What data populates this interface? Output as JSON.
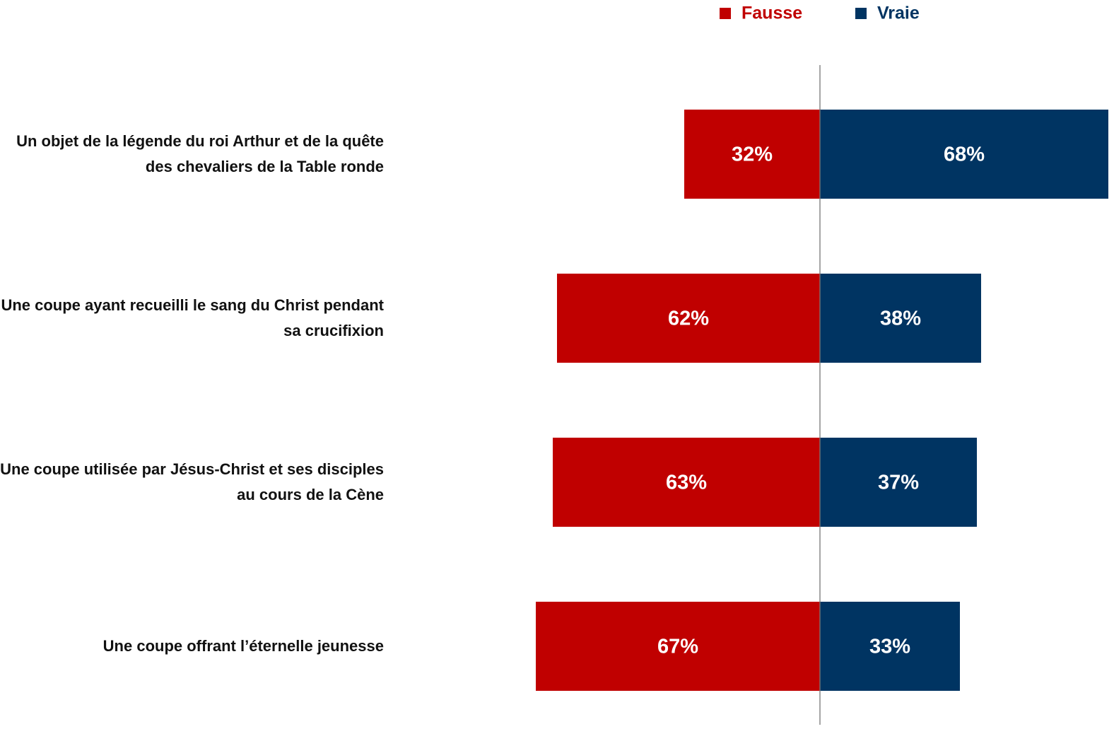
{
  "chart_data": {
    "type": "diverging_bar",
    "categories": [
      "Un objet de la légende du roi Arthur et de la quête des chevaliers de la Table ronde",
      "Une coupe ayant recueilli le sang du Christ pendant sa crucifixion",
      "Une coupe utilisée par Jésus-Christ et ses disciples au cours de la Cène",
      "Une coupe offrant l’éternelle jeunesse"
    ],
    "series": [
      {
        "name": "Fausse",
        "color": "#c00000",
        "values": [
          32,
          62,
          63,
          67
        ],
        "value_labels": [
          "32%",
          "62%",
          "63%",
          "67%"
        ]
      },
      {
        "name": "Vraie",
        "color": "#003462",
        "values": [
          68,
          38,
          37,
          33
        ],
        "value_labels": [
          "68%",
          "38%",
          "37%",
          "33%"
        ]
      }
    ],
    "xlim": [
      -68,
      68
    ]
  }
}
